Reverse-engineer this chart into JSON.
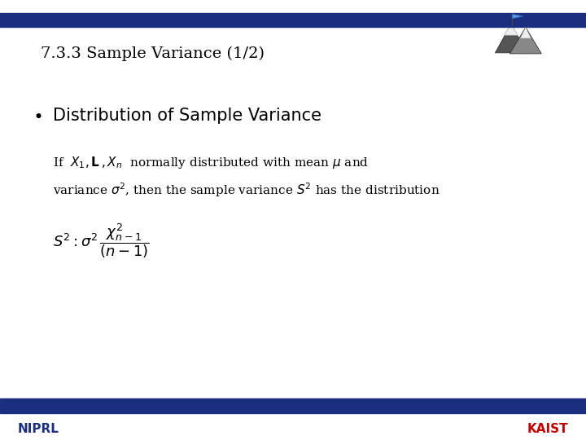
{
  "title": "7.3.3 Sample Variance (1/2)",
  "title_color": "#000000",
  "title_fontsize": 14,
  "bullet_header": "  Distribution of Sample Variance",
  "bullet_header_fontsize": 15,
  "bullet_header_color": "#000000",
  "top_bar_color": "#1B2F7E",
  "niprl_color": "#1B2F7E",
  "kaist_color": "#C00000",
  "background_color": "#FFFFFF",
  "body_fontsize": 11,
  "formula_fontsize": 13
}
